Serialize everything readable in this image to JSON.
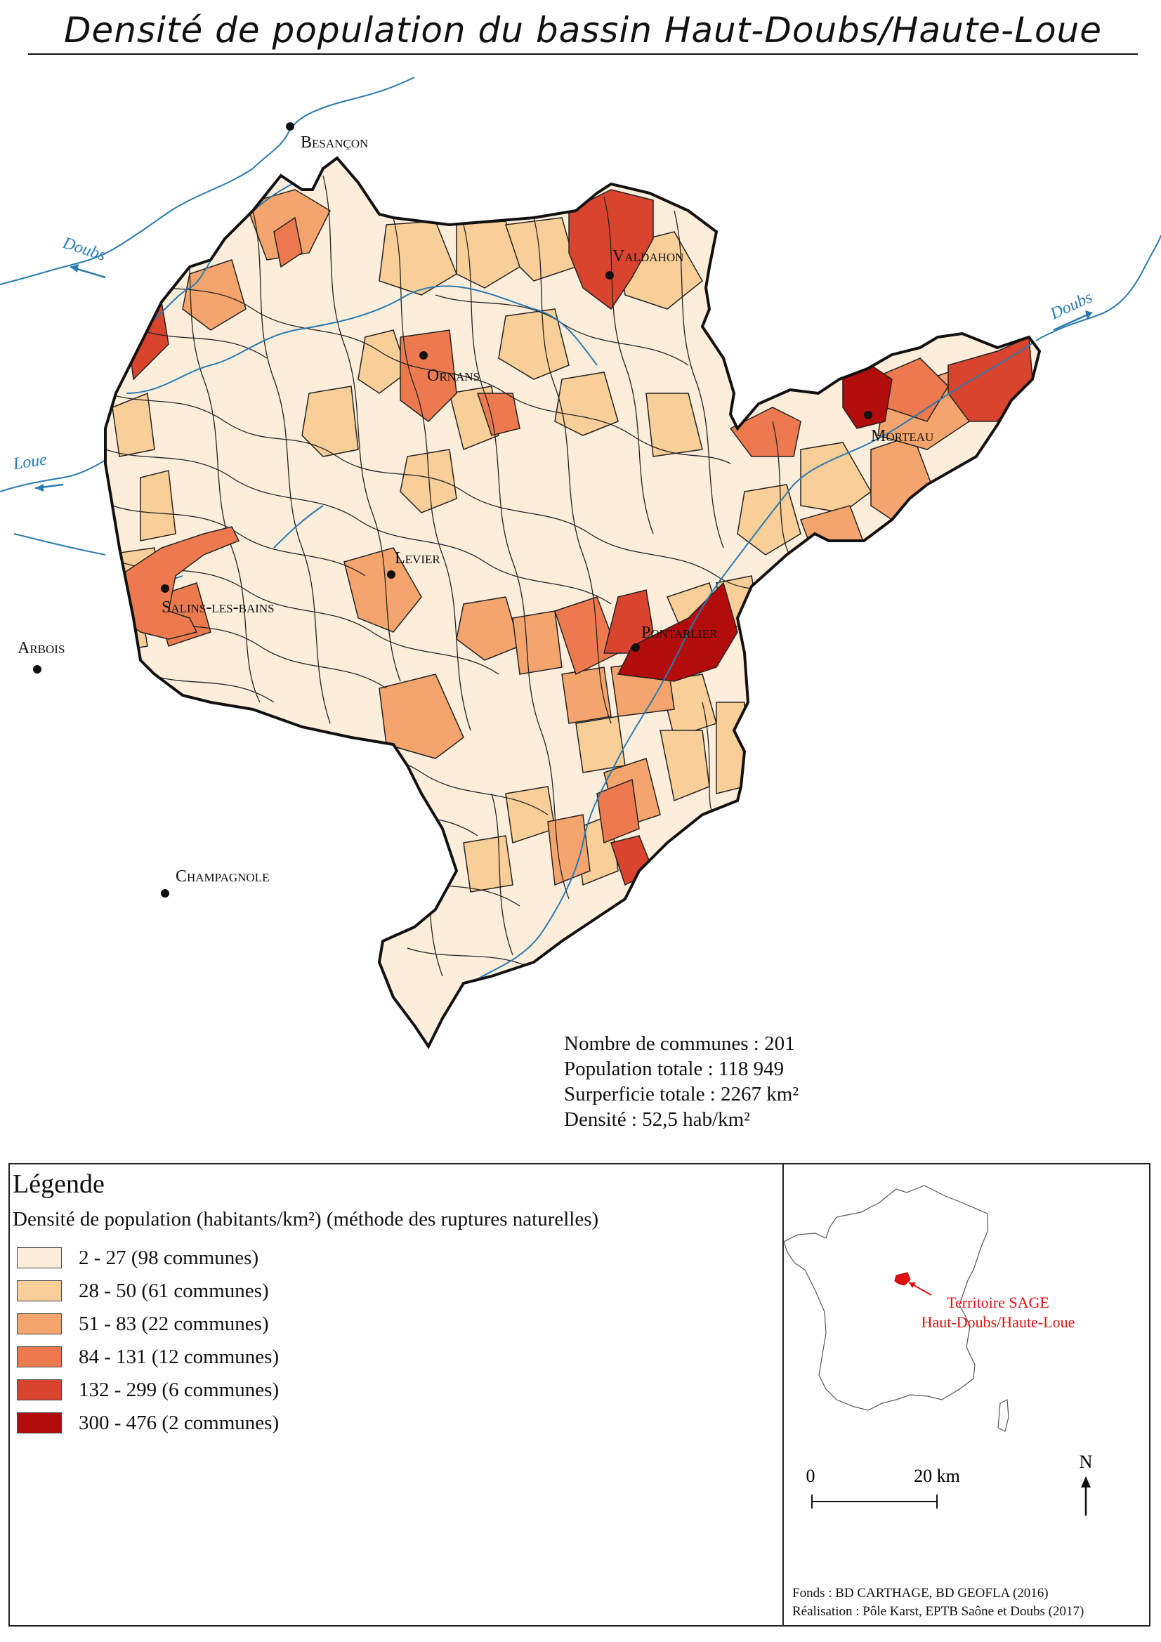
{
  "title": "Densité de population du bassin Haut-Doubs/Haute-Loue",
  "towns": {
    "besancon": "Besançon",
    "valdahon": "Valdahon",
    "ornans": "Ornans",
    "morteau": "Morteau",
    "levier": "Levier",
    "salins": "Salins-les-bains",
    "pontarlier": "Pontarlier",
    "arbois": "Arbois",
    "champagnole": "Champagnole"
  },
  "rivers": {
    "doubs_west": "Doubs",
    "doubs_east": "Doubs",
    "loue": "Loue"
  },
  "stats": {
    "communes": "Nombre de communes : 201",
    "population": "Population totale : 118 949",
    "area": "Surperficie totale : 2267 km²",
    "density": "Densité : 52,5 hab/km²"
  },
  "legend": {
    "title": "Légende",
    "subtitle": "Densité de population (habitants/km²) (méthode des ruptures naturelles)",
    "classes": [
      {
        "label": "2 - 27 (98 communes)",
        "color": "#fdeedc"
      },
      {
        "label": "28 - 50 (61 communes)",
        "color": "#f8cf98"
      },
      {
        "label": "51 - 83 (22 communes)",
        "color": "#f4a56e"
      },
      {
        "label": "84  - 131 (12 communes)",
        "color": "#ec7a4e"
      },
      {
        "label": "132 - 299 (6 communes)",
        "color": "#d8442e"
      },
      {
        "label": "300 - 476 (2 communes)",
        "color": "#b30c0c"
      }
    ]
  },
  "inset": {
    "territory_label_1": "Territoire SAGE",
    "territory_label_2": "Haut-Doubs/Haute-Loue",
    "territory_color": "#e01010",
    "scale_start": "0",
    "scale_end": "20 km",
    "north": "N"
  },
  "credits": {
    "sources": "Fonds : BD CARTHAGE, BD GEOFLA (2016)",
    "author": "Réalisation :  Pôle Karst, EPTB Saône et Doubs (2017)"
  },
  "colors": {
    "river": "#2a7ab0",
    "border": "#111111"
  }
}
